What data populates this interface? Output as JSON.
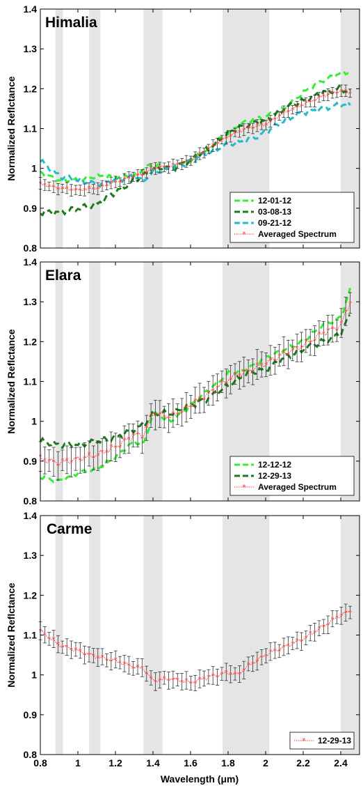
{
  "colors": {
    "band": "#e5e5e5",
    "date_120112": "#33ee33",
    "date_030813": "#1e7a1e",
    "date_092112": "#22bbcc",
    "date_121212": "#33ee33",
    "date_122913": "#1e7a1e",
    "averaged": "#ff3333",
    "errorbar": "#333333"
  },
  "chart_data": [
    {
      "type": "line",
      "title": "Himalia",
      "xlabel": "",
      "ylabel": "Normalized Reflctance",
      "xlim": [
        0.8,
        2.5
      ],
      "ylim": [
        0.8,
        1.4
      ],
      "xticks": [
        "0.8",
        "1",
        "1.2",
        "1.4",
        "1.6",
        "1.8",
        "2",
        "2.2",
        "2.4"
      ],
      "yticks": [
        "0.8",
        "0.9",
        "1",
        "1.1",
        "1.2",
        "1.3",
        "1.4"
      ],
      "shaded_bands": [
        [
          0.88,
          0.92
        ],
        [
          1.06,
          1.12
        ],
        [
          1.35,
          1.45
        ],
        [
          1.77,
          2.02
        ],
        [
          2.4,
          2.5
        ]
      ],
      "legend": "bottom-right",
      "series": [
        {
          "name": "12-01-12",
          "style": "dashed",
          "colorKey": "date_120112",
          "x": [
            0.8,
            0.9,
            1.0,
            1.1,
            1.2,
            1.3,
            1.35,
            1.4,
            1.5,
            1.6,
            1.7,
            1.8,
            1.9,
            2.0,
            2.1,
            2.2,
            2.3,
            2.4,
            2.45
          ],
          "y": [
            0.99,
            0.97,
            0.97,
            0.98,
            0.98,
            0.98,
            1.0,
            1.01,
            1.0,
            1.02,
            1.05,
            1.09,
            1.12,
            1.13,
            1.15,
            1.19,
            1.22,
            1.24,
            1.24
          ]
        },
        {
          "name": "03-08-13",
          "style": "dashed",
          "colorKey": "date_030813",
          "x": [
            0.8,
            0.9,
            1.0,
            1.1,
            1.2,
            1.3,
            1.35,
            1.4,
            1.5,
            1.6,
            1.7,
            1.8,
            1.9,
            2.0,
            2.1,
            2.2,
            2.3,
            2.4,
            2.45
          ],
          "y": [
            0.89,
            0.89,
            0.9,
            0.91,
            0.94,
            0.97,
            0.98,
            1.0,
            1.0,
            1.02,
            1.05,
            1.09,
            1.11,
            1.12,
            1.15,
            1.17,
            1.19,
            1.2,
            1.19
          ]
        },
        {
          "name": "09-21-12",
          "style": "dashed",
          "colorKey": "date_092112",
          "x": [
            0.8,
            0.9,
            1.0,
            1.1,
            1.2,
            1.3,
            1.35,
            1.4,
            1.5,
            1.6,
            1.7,
            1.8,
            1.9,
            2.0,
            2.1,
            2.2,
            2.3,
            2.4,
            2.45
          ],
          "y": [
            1.02,
            0.98,
            0.97,
            0.96,
            0.97,
            0.98,
            0.97,
            0.99,
            1.0,
            1.02,
            1.04,
            1.06,
            1.07,
            1.09,
            1.12,
            1.14,
            1.15,
            1.16,
            1.16
          ]
        },
        {
          "name": "Averaged Spectrum",
          "style": "avg",
          "colorKey": "averaged",
          "err": 0.01,
          "x": [
            0.8,
            0.9,
            1.0,
            1.1,
            1.2,
            1.3,
            1.35,
            1.4,
            1.5,
            1.6,
            1.7,
            1.8,
            1.9,
            2.0,
            2.1,
            2.2,
            2.3,
            2.4,
            2.45
          ],
          "y": [
            0.96,
            0.95,
            0.945,
            0.95,
            0.965,
            0.98,
            0.985,
            1.0,
            1.005,
            1.02,
            1.05,
            1.08,
            1.1,
            1.11,
            1.14,
            1.16,
            1.18,
            1.195,
            1.19
          ]
        }
      ]
    },
    {
      "type": "line",
      "title": "Elara",
      "xlabel": "",
      "ylabel": "Normalized Reflctance",
      "xlim": [
        0.8,
        2.5
      ],
      "ylim": [
        0.8,
        1.4
      ],
      "xticks": [
        "0.8",
        "1",
        "1.2",
        "1.4",
        "1.6",
        "1.8",
        "2",
        "2.2",
        "2.4"
      ],
      "yticks": [
        "0.8",
        "0.9",
        "1",
        "1.1",
        "1.2",
        "1.3",
        "1.4"
      ],
      "shaded_bands": [
        [
          0.88,
          0.92
        ],
        [
          1.06,
          1.12
        ],
        [
          1.35,
          1.45
        ],
        [
          1.77,
          2.02
        ],
        [
          2.4,
          2.5
        ]
      ],
      "legend": "bottom-right",
      "series": [
        {
          "name": "12-12-12",
          "style": "dashed",
          "colorKey": "date_121212",
          "x": [
            0.8,
            0.9,
            1.0,
            1.1,
            1.2,
            1.3,
            1.35,
            1.4,
            1.5,
            1.6,
            1.7,
            1.8,
            1.9,
            2.0,
            2.1,
            2.2,
            2.3,
            2.4,
            2.45
          ],
          "y": [
            0.86,
            0.85,
            0.87,
            0.88,
            0.91,
            0.95,
            0.94,
            1.02,
            1.0,
            1.04,
            1.08,
            1.12,
            1.13,
            1.16,
            1.18,
            1.2,
            1.24,
            1.26,
            1.33
          ]
        },
        {
          "name": "12-29-13",
          "style": "dashed",
          "colorKey": "date_122913",
          "x": [
            0.8,
            0.9,
            1.0,
            1.1,
            1.2,
            1.3,
            1.35,
            1.4,
            1.5,
            1.6,
            1.7,
            1.8,
            1.9,
            2.0,
            2.1,
            2.2,
            2.3,
            2.4,
            2.45
          ],
          "y": [
            0.95,
            0.94,
            0.94,
            0.95,
            0.96,
            0.98,
            0.99,
            1.02,
            1.02,
            1.04,
            1.06,
            1.09,
            1.12,
            1.13,
            1.16,
            1.18,
            1.2,
            1.22,
            1.27
          ]
        },
        {
          "name": "Averaged Spectrum",
          "style": "avg",
          "colorKey": "averaged",
          "err": 0.025,
          "x": [
            0.8,
            0.9,
            1.0,
            1.1,
            1.2,
            1.3,
            1.35,
            1.4,
            1.5,
            1.6,
            1.7,
            1.8,
            1.9,
            2.0,
            2.1,
            2.2,
            2.3,
            2.4,
            2.45
          ],
          "y": [
            0.905,
            0.895,
            0.905,
            0.915,
            0.935,
            0.965,
            0.965,
            1.02,
            1.01,
            1.04,
            1.07,
            1.105,
            1.125,
            1.145,
            1.17,
            1.19,
            1.22,
            1.24,
            1.3
          ]
        }
      ]
    },
    {
      "type": "line",
      "title": "Carme",
      "xlabel": "Wavelength (μm)",
      "ylabel": "Normalized Reflctance",
      "xlim": [
        0.8,
        2.5
      ],
      "ylim": [
        0.8,
        1.4
      ],
      "xticks": [
        "0.8",
        "1",
        "1.2",
        "1.4",
        "1.6",
        "1.8",
        "2",
        "2.2",
        "2.4"
      ],
      "yticks": [
        "0.8",
        "0.9",
        "1",
        "1.1",
        "1.2",
        "1.3",
        "1.4"
      ],
      "shaded_bands": [
        [
          0.88,
          0.92
        ],
        [
          1.06,
          1.12
        ],
        [
          1.35,
          1.45
        ],
        [
          1.77,
          2.02
        ],
        [
          2.4,
          2.5
        ]
      ],
      "legend": "bottom-right",
      "series": [
        {
          "name": "12-29-13",
          "style": "avg",
          "colorKey": "averaged",
          "err": 0.015,
          "x": [
            0.8,
            0.9,
            1.0,
            1.1,
            1.2,
            1.3,
            1.35,
            1.4,
            1.5,
            1.6,
            1.7,
            1.8,
            1.85,
            1.9,
            2.0,
            2.1,
            2.2,
            2.3,
            2.4,
            2.45
          ],
          "y": [
            1.11,
            1.075,
            1.06,
            1.045,
            1.035,
            1.02,
            1.015,
            0.985,
            0.99,
            0.98,
            0.995,
            1.005,
            1.0,
            1.02,
            1.05,
            1.07,
            1.09,
            1.12,
            1.15,
            1.16
          ]
        }
      ]
    }
  ]
}
